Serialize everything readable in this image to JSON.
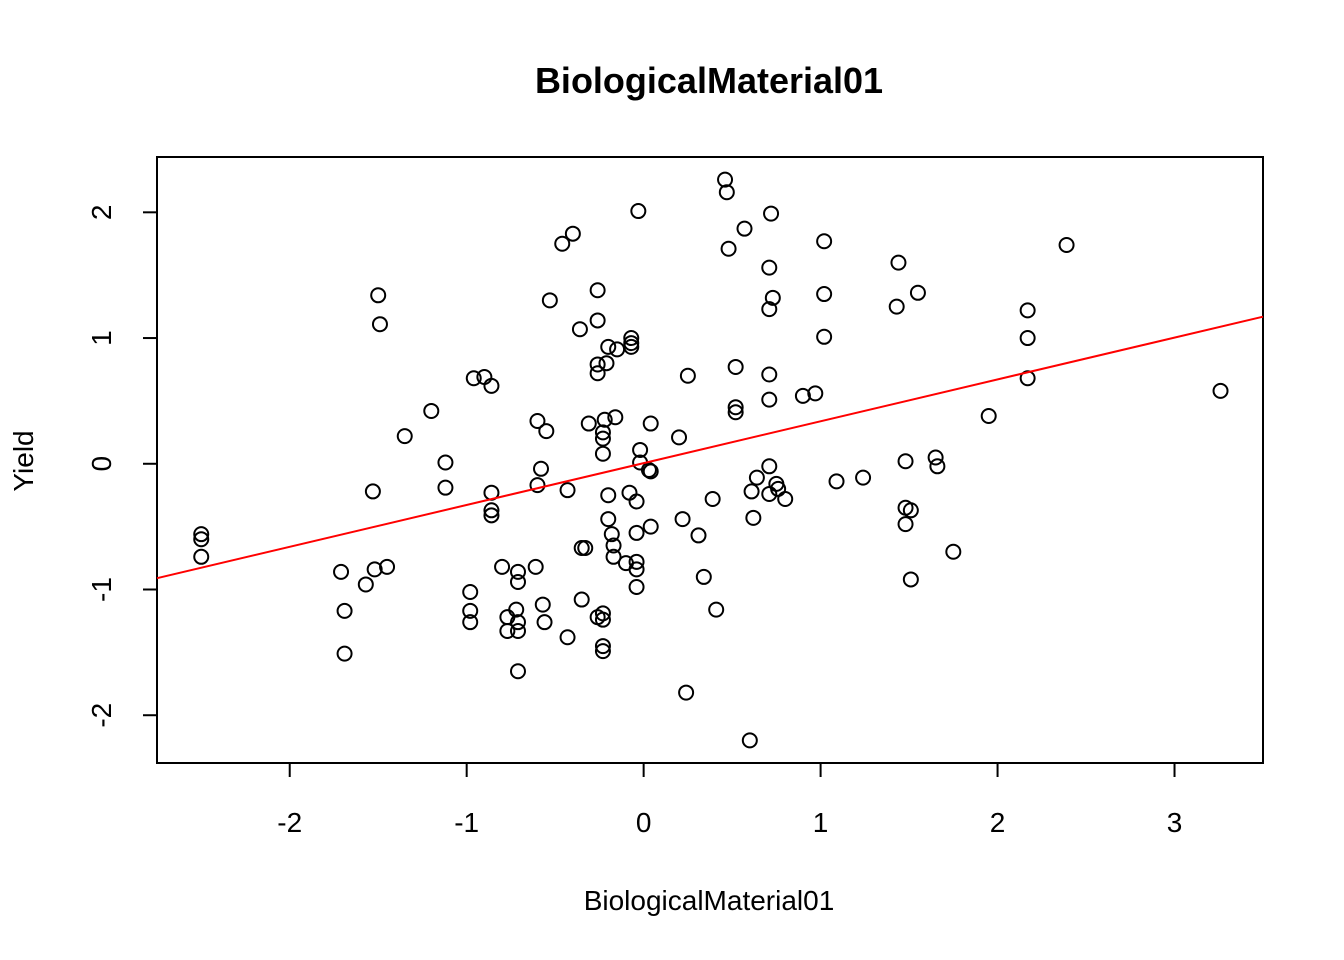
{
  "chart_data": {
    "type": "scatter",
    "title": "BiologicalMaterial01",
    "xlabel": "BiologicalMaterial01",
    "ylabel": "Yield",
    "xlim": [
      -2.75,
      3.5
    ],
    "ylim": [
      -2.38,
      2.44
    ],
    "xticks": [
      -2,
      -1,
      0,
      1,
      2,
      3
    ],
    "yticks": [
      -2,
      -1,
      0,
      1,
      2
    ],
    "xtick_labels": [
      "-2",
      "-1",
      "0",
      "1",
      "2",
      "3"
    ],
    "ytick_labels": [
      "-2",
      "-1",
      "0",
      "1",
      "2"
    ],
    "series": [
      {
        "points": [
          [
            -2.5,
            -0.56
          ],
          [
            -2.5,
            -0.6
          ],
          [
            -2.5,
            -0.74
          ],
          [
            -1.71,
            -0.86
          ],
          [
            -1.69,
            -1.17
          ],
          [
            -1.69,
            -1.51
          ],
          [
            -1.57,
            -0.96
          ],
          [
            -1.53,
            -0.22
          ],
          [
            -1.52,
            -0.84
          ],
          [
            -1.5,
            1.34
          ],
          [
            -1.49,
            1.11
          ],
          [
            -1.45,
            -0.82
          ],
          [
            -1.35,
            0.22
          ],
          [
            -1.2,
            0.42
          ],
          [
            -1.12,
            0.01
          ],
          [
            -1.12,
            -0.19
          ],
          [
            -0.98,
            -1.02
          ],
          [
            -0.98,
            -1.17
          ],
          [
            -0.98,
            -1.26
          ],
          [
            -0.96,
            0.68
          ],
          [
            -0.9,
            0.69
          ],
          [
            -0.86,
            0.62
          ],
          [
            -0.86,
            -0.23
          ],
          [
            -0.86,
            -0.37
          ],
          [
            -0.86,
            -0.41
          ],
          [
            -0.8,
            -0.82
          ],
          [
            -0.77,
            -1.22
          ],
          [
            -0.77,
            -1.33
          ],
          [
            -0.72,
            -1.16
          ],
          [
            -0.71,
            -1.26
          ],
          [
            -0.71,
            -1.33
          ],
          [
            -0.71,
            -1.65
          ],
          [
            -0.71,
            -0.86
          ],
          [
            -0.71,
            -0.94
          ],
          [
            -0.61,
            -0.82
          ],
          [
            -0.6,
            0.34
          ],
          [
            -0.6,
            -0.17
          ],
          [
            -0.58,
            -0.04
          ],
          [
            -0.57,
            -1.12
          ],
          [
            -0.56,
            -1.26
          ],
          [
            -0.55,
            0.26
          ],
          [
            -0.53,
            1.3
          ],
          [
            -0.46,
            1.75
          ],
          [
            -0.43,
            -0.21
          ],
          [
            -0.43,
            -1.38
          ],
          [
            -0.4,
            1.83
          ],
          [
            -0.36,
            1.07
          ],
          [
            -0.35,
            -1.08
          ],
          [
            -0.35,
            -0.67
          ],
          [
            -0.33,
            -0.67
          ],
          [
            -0.31,
            0.32
          ],
          [
            -0.26,
            1.38
          ],
          [
            -0.26,
            1.14
          ],
          [
            -0.26,
            0.79
          ],
          [
            -0.26,
            0.72
          ],
          [
            -0.26,
            -1.22
          ],
          [
            -0.23,
            0.25
          ],
          [
            -0.23,
            0.2
          ],
          [
            -0.23,
            0.08
          ],
          [
            -0.23,
            -1.19
          ],
          [
            -0.23,
            -1.24
          ],
          [
            -0.23,
            -1.45
          ],
          [
            -0.23,
            -1.49
          ],
          [
            -0.22,
            0.35
          ],
          [
            -0.21,
            0.8
          ],
          [
            -0.2,
            0.93
          ],
          [
            -0.2,
            -0.25
          ],
          [
            -0.2,
            -0.44
          ],
          [
            -0.18,
            -0.56
          ],
          [
            -0.17,
            -0.65
          ],
          [
            -0.17,
            -0.74
          ],
          [
            -0.16,
            0.37
          ],
          [
            -0.15,
            0.91
          ],
          [
            -0.1,
            -0.79
          ],
          [
            -0.08,
            -0.23
          ],
          [
            -0.07,
            1.0
          ],
          [
            -0.07,
            0.96
          ],
          [
            -0.07,
            0.93
          ],
          [
            -0.04,
            -0.3
          ],
          [
            -0.04,
            -0.55
          ],
          [
            -0.04,
            -0.78
          ],
          [
            -0.04,
            -0.84
          ],
          [
            -0.04,
            -0.98
          ],
          [
            -0.03,
            2.01
          ],
          [
            -0.02,
            0.11
          ],
          [
            -0.02,
            0.01
          ],
          [
            0.03,
            -0.05
          ],
          [
            0.04,
            -0.06
          ],
          [
            0.04,
            0.32
          ],
          [
            0.04,
            -0.5
          ],
          [
            0.2,
            0.21
          ],
          [
            0.22,
            -0.44
          ],
          [
            0.24,
            -1.82
          ],
          [
            0.25,
            0.7
          ],
          [
            0.31,
            -0.57
          ],
          [
            0.34,
            -0.9
          ],
          [
            0.39,
            -0.28
          ],
          [
            0.41,
            -1.16
          ],
          [
            0.46,
            2.26
          ],
          [
            0.47,
            2.16
          ],
          [
            0.48,
            1.71
          ],
          [
            0.52,
            0.77
          ],
          [
            0.52,
            0.45
          ],
          [
            0.52,
            0.41
          ],
          [
            0.57,
            1.87
          ],
          [
            0.6,
            -2.2
          ],
          [
            0.61,
            -0.22
          ],
          [
            0.62,
            -0.43
          ],
          [
            0.64,
            -0.11
          ],
          [
            0.71,
            1.56
          ],
          [
            0.71,
            1.23
          ],
          [
            0.71,
            0.71
          ],
          [
            0.71,
            0.51
          ],
          [
            0.71,
            -0.02
          ],
          [
            0.71,
            -0.24
          ],
          [
            0.72,
            1.99
          ],
          [
            0.73,
            1.32
          ],
          [
            0.75,
            -0.16
          ],
          [
            0.76,
            -0.2
          ],
          [
            0.8,
            -0.28
          ],
          [
            0.9,
            0.54
          ],
          [
            0.97,
            0.56
          ],
          [
            1.02,
            1.77
          ],
          [
            1.02,
            1.35
          ],
          [
            1.02,
            1.01
          ],
          [
            1.09,
            -0.14
          ],
          [
            1.24,
            -0.11
          ],
          [
            1.43,
            1.25
          ],
          [
            1.44,
            1.6
          ],
          [
            1.48,
            0.02
          ],
          [
            1.48,
            -0.35
          ],
          [
            1.48,
            -0.48
          ],
          [
            1.51,
            -0.37
          ],
          [
            1.51,
            -0.92
          ],
          [
            1.55,
            1.36
          ],
          [
            1.65,
            0.05
          ],
          [
            1.66,
            -0.02
          ],
          [
            1.75,
            -0.7
          ],
          [
            1.95,
            0.38
          ],
          [
            2.17,
            1.22
          ],
          [
            2.17,
            1.0
          ],
          [
            2.17,
            0.68
          ],
          [
            2.39,
            1.74
          ],
          [
            3.26,
            0.58
          ]
        ]
      }
    ],
    "fit_line": {
      "x": [
        -2.75,
        3.5
      ],
      "y": [
        -0.91,
        1.17
      ],
      "color": "#ff0000"
    },
    "marker": "open-circle",
    "grid": false,
    "legend": "none"
  }
}
